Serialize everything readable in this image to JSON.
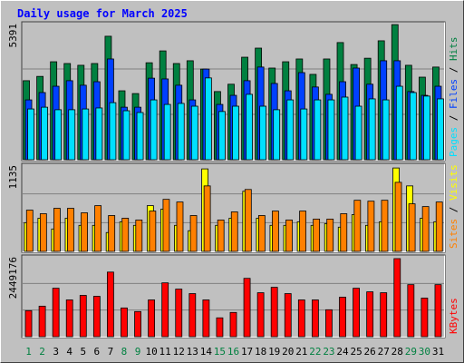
{
  "chart_data": {
    "type": "bar",
    "title": "Daily usage for March 2025",
    "categories": [
      "1",
      "2",
      "3",
      "4",
      "5",
      "6",
      "7",
      "8",
      "9",
      "10",
      "11",
      "12",
      "13",
      "14",
      "15",
      "16",
      "17",
      "18",
      "19",
      "20",
      "21",
      "22",
      "23",
      "24",
      "25",
      "26",
      "27",
      "28",
      "29",
      "30",
      "31"
    ],
    "category_colors": [
      "#008040",
      "#008040",
      "#000000",
      "#000000",
      "#000000",
      "#000000",
      "#000000",
      "#008040",
      "#008040",
      "#000000",
      "#000000",
      "#000000",
      "#000000",
      "#000000",
      "#008040",
      "#008040",
      "#000000",
      "#000000",
      "#000000",
      "#000000",
      "#000000",
      "#008040",
      "#008040",
      "#000000",
      "#000000",
      "#000000",
      "#000000",
      "#000000",
      "#008040",
      "#008040",
      "#000000"
    ],
    "legend_separator": " / ",
    "panels": [
      {
        "ylim": [
          0,
          5391
        ],
        "yticks": [
          5391
        ],
        "grid_divisions": 3,
        "series": [
          {
            "name": "Hits",
            "color": "#008040",
            "values": [
              3130,
              3300,
              3880,
              3810,
              3740,
              3810,
              4890,
              2730,
              2620,
              3840,
              4310,
              3810,
              3920,
              3590,
              2700,
              2990,
              4060,
              4420,
              3630,
              3880,
              3990,
              3380,
              3990,
              4640,
              3770,
              4020,
              4710,
              5350,
              3740,
              3270,
              3670
            ]
          },
          {
            "name": "Files",
            "color": "#0040ff",
            "values": [
              2370,
              2660,
              2910,
              3130,
              2950,
              3090,
              3990,
              2080,
              2080,
              3230,
              3200,
              2950,
              2370,
              3590,
              2190,
              2550,
              3130,
              3670,
              3020,
              2730,
              3450,
              2880,
              2590,
              3090,
              3630,
              2990,
              3920,
              3920,
              2700,
              2550,
              2910
            ]
          },
          {
            "name": "Pages",
            "color": "#00e0ff",
            "values": [
              2010,
              2080,
              1980,
              1980,
              2010,
              2050,
              2260,
              1940,
              1870,
              2370,
              2190,
              2230,
              2120,
              3240,
              1910,
              2120,
              2590,
              2120,
              1980,
              2370,
              2010,
              2370,
              2370,
              2480,
              2120,
              2410,
              2370,
              2910,
              2660,
              2520,
              2410
            ]
          }
        ]
      },
      {
        "ylim": [
          0,
          1135
        ],
        "yticks": [
          1135
        ],
        "grid_divisions": 3,
        "series": [
          {
            "name": "Visits",
            "color": "#ffff00",
            "values": [
              378,
              437,
              295,
              437,
              343,
              343,
              248,
              390,
              343,
              602,
              555,
              343,
              272,
              1086,
              343,
              437,
              791,
              437,
              343,
              343,
              390,
              343,
              366,
              319,
              484,
              343,
              390,
              1098,
              862,
              437,
              390
            ]
          },
          {
            "name": "Sites",
            "color": "#ff8000",
            "values": [
              543,
              496,
              567,
              567,
              508,
              602,
              472,
              437,
              413,
              531,
              685,
              650,
              472,
              862,
              413,
              520,
              815,
              472,
              531,
              413,
              531,
              425,
              425,
              496,
              673,
              661,
              673,
              909,
              626,
              590,
              650
            ]
          }
        ]
      },
      {
        "ylim": [
          0,
          2449176
        ],
        "yticks": [
          2449176
        ],
        "grid_divisions": 3,
        "series": [
          {
            "name": "KBytes",
            "color": "#ff0000",
            "values": [
              798000,
              936000,
              1486000,
              1128000,
              1266000,
              1238000,
              1981000,
              881000,
              771000,
              1128000,
              1651000,
              1459000,
              1321000,
              1128000,
              578000,
              743000,
              1789000,
              1348000,
              1514000,
              1321000,
              1128000,
              1128000,
              826000,
              1211000,
              1486000,
              1376000,
              1348000,
              2394000,
              1596000,
              1183000,
              1596000
            ]
          }
        ]
      }
    ]
  }
}
